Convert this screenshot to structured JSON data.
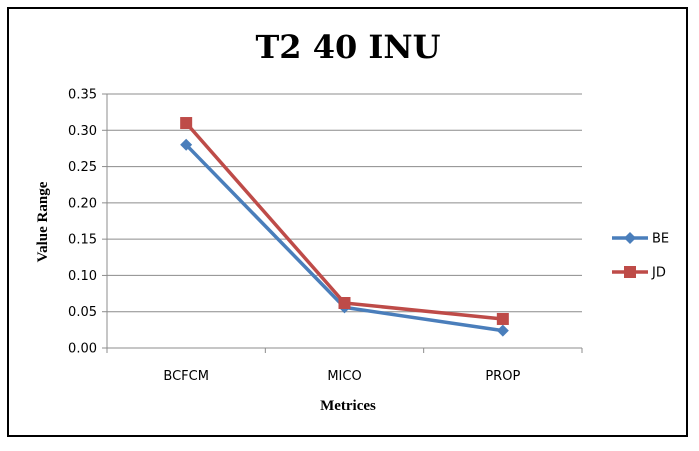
{
  "chart_data": {
    "type": "line",
    "title": "T2 40 INU",
    "xlabel": "Metrices",
    "ylabel": "Value Range",
    "categories": [
      "BCFCM",
      "MICO",
      "PROP"
    ],
    "ylim": [
      0,
      0.35
    ],
    "yticks": [
      "0.00",
      "0.05",
      "0.10",
      "0.15",
      "0.20",
      "0.25",
      "0.30",
      "0.35"
    ],
    "grid": "horizontal",
    "legend_position": "right",
    "series": [
      {
        "name": "BE",
        "values": [
          0.28,
          0.056,
          0.024
        ],
        "color": "#4a7ebb",
        "marker": "diamond"
      },
      {
        "name": "JD",
        "values": [
          0.31,
          0.062,
          0.04
        ],
        "color": "#be4b48",
        "marker": "square"
      }
    ]
  }
}
